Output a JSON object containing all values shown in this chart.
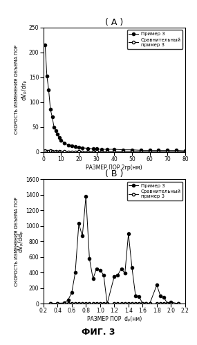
{
  "title_A": "( A )",
  "title_B": "( B )",
  "fig_label": "ФИГ. 3",
  "A_x1": [
    1,
    2,
    3,
    4,
    5,
    6,
    7,
    8,
    9,
    10,
    12,
    14,
    16,
    18,
    20,
    22,
    25,
    28,
    30,
    33,
    36,
    40,
    45,
    50,
    55,
    60,
    65,
    70,
    75,
    80
  ],
  "A_y1": [
    215,
    153,
    125,
    85,
    70,
    50,
    43,
    35,
    28,
    23,
    18,
    14,
    12,
    10,
    9,
    8,
    7,
    6,
    6,
    5,
    5,
    5,
    4,
    4,
    3,
    3,
    3,
    3,
    3,
    2
  ],
  "A_x2": [
    1,
    2,
    3,
    4,
    5,
    6,
    7,
    8,
    9,
    10,
    12,
    14,
    16,
    18,
    20,
    22,
    25,
    28,
    30,
    33,
    36,
    40,
    45,
    50,
    55,
    60,
    65,
    70,
    75,
    80
  ],
  "A_y2": [
    2,
    1,
    1,
    2,
    1,
    0,
    1,
    0,
    1,
    0,
    1,
    0,
    0,
    0,
    1,
    0,
    0,
    0,
    1,
    0,
    0,
    0,
    0,
    0,
    0,
    0,
    0,
    0,
    0,
    0
  ],
  "A_xlabel": "РАЗМЕР ПОР 2rp(нм)",
  "A_ylabel_main": "СКОРОСТЬ ИЗМЕНЕНИЯ ОБЪЕМА ПОР",
  "A_ylabel_sub": "dVₚ/drₚ",
  "A_xlim": [
    0,
    80
  ],
  "A_ylim": [
    0,
    250
  ],
  "A_yticks": [
    0,
    50,
    100,
    150,
    200,
    250
  ],
  "A_xticks": [
    0,
    10,
    20,
    30,
    40,
    50,
    60,
    70,
    80
  ],
  "A_legend1": "Пример 3",
  "A_legend2": "Сравнительный\nпример 3",
  "B_x1": [
    0.3,
    0.4,
    0.5,
    0.55,
    0.6,
    0.65,
    0.7,
    0.75,
    0.8,
    0.85,
    0.9,
    0.95,
    1.0,
    1.05,
    1.1,
    1.2,
    1.25,
    1.3,
    1.35,
    1.4,
    1.45,
    1.5,
    1.55,
    1.6,
    1.65,
    1.7,
    1.8,
    1.85,
    1.9,
    1.95,
    2.0,
    2.1
  ],
  "B_y1": [
    0,
    5,
    10,
    50,
    140,
    400,
    1030,
    870,
    1380,
    580,
    320,
    450,
    430,
    370,
    0,
    350,
    370,
    450,
    390,
    900,
    460,
    100,
    90,
    0,
    0,
    0,
    240,
    100,
    80,
    0,
    20,
    0
  ],
  "B_x2": [
    0.3,
    0.4,
    0.5,
    0.55,
    0.6,
    0.65,
    0.7,
    0.75,
    0.8,
    0.85,
    0.9,
    0.95,
    1.0,
    1.05,
    1.1,
    1.2,
    1.25,
    1.3,
    1.35,
    1.4,
    1.45,
    1.5,
    1.55,
    1.6,
    1.65,
    1.7,
    1.8,
    1.85,
    1.9,
    1.95,
    2.0,
    2.1
  ],
  "B_y2": [
    0,
    0,
    0,
    0,
    0,
    0,
    0,
    0,
    0,
    0,
    0,
    0,
    0,
    0,
    0,
    0,
    0,
    0,
    0,
    0,
    0,
    0,
    0,
    0,
    0,
    0,
    0,
    0,
    0,
    0,
    0,
    0
  ],
  "B_xlabel": "РАЗМЕР ПОР  dₚ(нм)",
  "B_ylabel_main": "СКОРОСТЬ ИЗМЕНЕНИЯ ОБЪЕМА ПОР",
  "B_ylabel_sub": "dVₚ/ddₚ",
  "B_xlim": [
    0.2,
    2.2
  ],
  "B_ylim": [
    0,
    1600
  ],
  "B_yticks": [
    0,
    200,
    400,
    600,
    800,
    1000,
    1200,
    1400,
    1600
  ],
  "B_xticks": [
    0.2,
    0.4,
    0.6,
    0.8,
    1.0,
    1.2,
    1.4,
    1.6,
    1.8,
    2.0,
    2.2
  ],
  "B_legend1": "Пример 3",
  "B_legend2": "Сравнительный\nпример 3",
  "line_color": "#000000",
  "bg_color": "#ffffff"
}
